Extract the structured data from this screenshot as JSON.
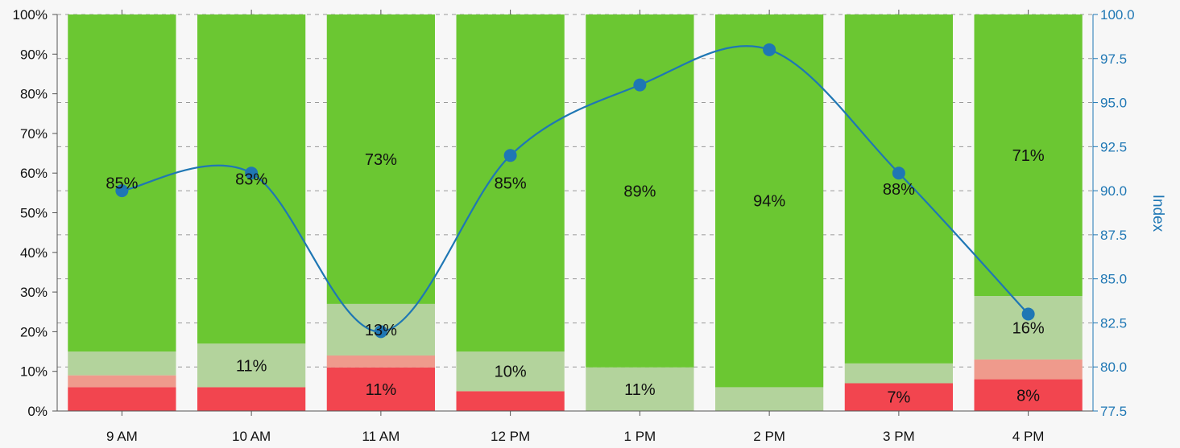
{
  "chart_data": {
    "type": "bar",
    "stacked": true,
    "normalized_percent": true,
    "categories": [
      "9 AM",
      "10 AM",
      "11 AM",
      "12 PM",
      "1 PM",
      "2 PM",
      "3 PM",
      "4 PM"
    ],
    "series": [
      {
        "color": "#f2454f",
        "values": [
          6,
          6,
          11,
          5,
          0,
          0,
          7,
          8
        ]
      },
      {
        "color": "#ef9a8c",
        "values": [
          3,
          0,
          3,
          0,
          0,
          0,
          0,
          5
        ]
      },
      {
        "color": "#b3d39c",
        "values": [
          6,
          11,
          13,
          10,
          11,
          6,
          5,
          16
        ]
      },
      {
        "color": "#6bc732",
        "values": [
          85,
          83,
          73,
          85,
          89,
          94,
          88,
          71
        ]
      }
    ],
    "bar_labels": [
      {
        "category": 0,
        "series": 3,
        "text": "85%"
      },
      {
        "category": 1,
        "series": 3,
        "text": "83%"
      },
      {
        "category": 1,
        "series": 2,
        "text": "11%"
      },
      {
        "category": 2,
        "series": 3,
        "text": "73%"
      },
      {
        "category": 2,
        "series": 2,
        "text": "13%"
      },
      {
        "category": 2,
        "series": 0,
        "text": "11%"
      },
      {
        "category": 3,
        "series": 3,
        "text": "85%"
      },
      {
        "category": 3,
        "series": 2,
        "text": "10%"
      },
      {
        "category": 4,
        "series": 3,
        "text": "89%"
      },
      {
        "category": 4,
        "series": 2,
        "text": "11%"
      },
      {
        "category": 5,
        "series": 3,
        "text": "94%"
      },
      {
        "category": 6,
        "series": 3,
        "text": "88%"
      },
      {
        "category": 6,
        "series": 0,
        "text": "7%"
      },
      {
        "category": 7,
        "series": 3,
        "text": "71%"
      },
      {
        "category": 7,
        "series": 2,
        "text": "16%"
      },
      {
        "category": 7,
        "series": 0,
        "text": "8%"
      }
    ],
    "line": {
      "color": "#1f77b4",
      "axis": "right",
      "values": [
        90,
        91,
        82,
        92,
        96,
        98,
        91,
        83
      ],
      "smooth": true
    },
    "left_axis": {
      "ylim": [
        0,
        100
      ],
      "ticks": [
        "0%",
        "10%",
        "20%",
        "30%",
        "40%",
        "50%",
        "60%",
        "70%",
        "80%",
        "90%",
        "100%"
      ]
    },
    "right_axis": {
      "label": "Index",
      "ylim": [
        77.5,
        100
      ],
      "ticks": [
        "77.5",
        "80.0",
        "82.5",
        "85.0",
        "87.5",
        "90.0",
        "92.5",
        "95.0",
        "97.5",
        "100.0"
      ]
    },
    "grid": "dashed horizontal on right axis",
    "legend": "none"
  }
}
